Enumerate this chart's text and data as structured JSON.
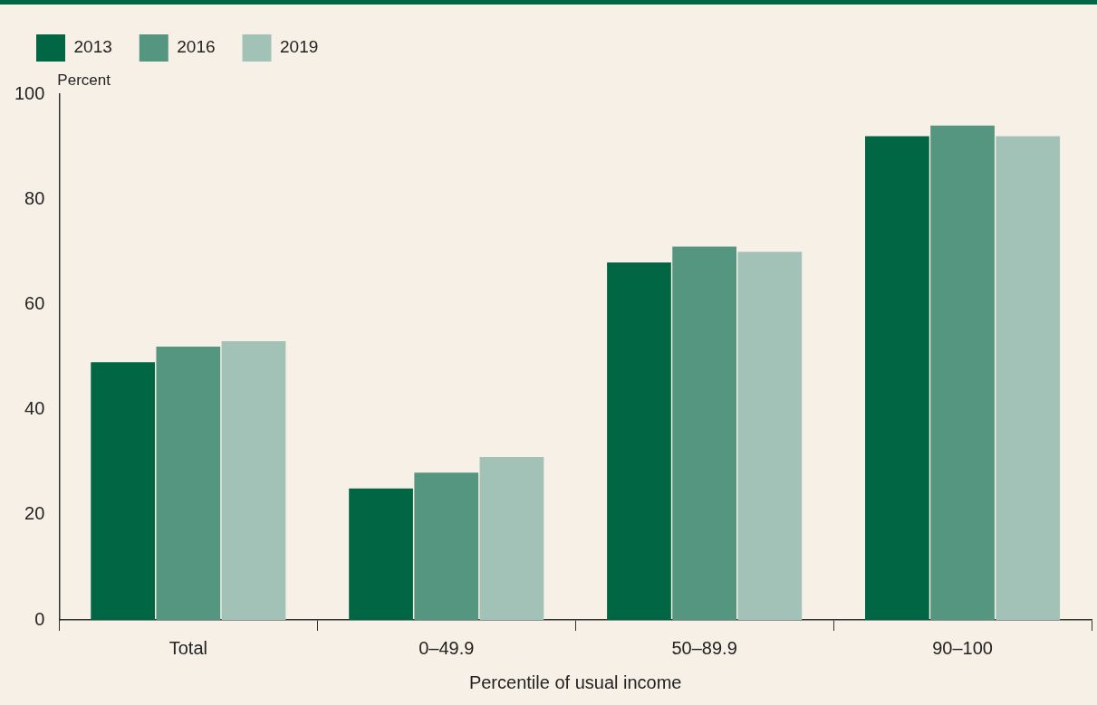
{
  "chart_data": {
    "type": "bar",
    "xlabel": "Percentile of usual income",
    "ylabel": "Percent",
    "categories": [
      "Total",
      "0–49.9",
      "50–89.9",
      "90–100"
    ],
    "series": [
      {
        "name": "2013",
        "color": "#006643",
        "values": [
          49,
          25,
          68,
          92
        ]
      },
      {
        "name": "2016",
        "color": "#559680",
        "values": [
          52,
          28,
          71,
          94
        ]
      },
      {
        "name": "2019",
        "color": "#a2c2b7",
        "values": [
          53,
          31,
          70,
          92
        ]
      }
    ],
    "ylim": [
      0,
      100
    ],
    "yticks": [
      0,
      20,
      40,
      60,
      80,
      100
    ],
    "grid": false,
    "legend": "top left"
  }
}
